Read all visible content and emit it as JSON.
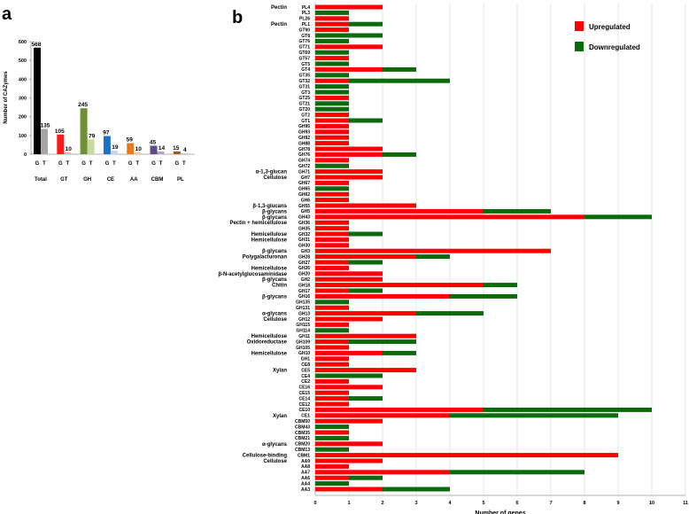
{
  "chart_data": [
    {
      "panel": "a",
      "type": "bar",
      "ylabel": "Number of CAZymes",
      "ylim": [
        0,
        600
      ],
      "yticks": [
        0,
        100,
        200,
        300,
        400,
        500,
        600
      ],
      "bar_labels": [
        "G",
        "T"
      ],
      "categories": [
        "Total",
        "GT",
        "GH",
        "CE",
        "AA",
        "CBM",
        "PL"
      ],
      "series": [
        {
          "name": "G",
          "values": [
            568,
            105,
            245,
            97,
            59,
            45,
            15
          ]
        },
        {
          "name": "T",
          "values": [
            135,
            10,
            79,
            19,
            10,
            14,
            4
          ]
        }
      ],
      "colors": {
        "G": [
          "#000000",
          "#ff1a1a",
          "#6f8f35",
          "#1f6fc5",
          "#e8791e",
          "#5f4b8b",
          "#9c5a24"
        ],
        "T": [
          "#a6a6a6",
          "#f4b3b3",
          "#c6dc9c",
          "#c5d8f1",
          "#f6c9a8",
          "#b3a5c8",
          "#d9b38c"
        ]
      }
    },
    {
      "panel": "b",
      "type": "bar",
      "orientation": "horizontal-stacked",
      "xlabel": "Number of genes",
      "xlim": [
        0,
        11
      ],
      "xticks": [
        0,
        1,
        2,
        3,
        4,
        5,
        6,
        7,
        8,
        9,
        10,
        11
      ],
      "grid": true,
      "legend": {
        "position": "top-right",
        "entries": [
          "Upregulated",
          "Downregulated"
        ]
      },
      "colors": {
        "Upregulated": "#ff0000",
        "Downregulated": "#0b6a0b"
      },
      "rows": [
        {
          "family": "PL4",
          "substrate": "Pectin",
          "up": 2,
          "down": 0
        },
        {
          "family": "PL3",
          "substrate": "",
          "up": 0,
          "down": 1
        },
        {
          "family": "PL26",
          "substrate": "",
          "up": 1,
          "down": 0
        },
        {
          "family": "PL1",
          "substrate": "Pectin",
          "up": 1,
          "down": 1
        },
        {
          "family": "GT90",
          "substrate": "",
          "up": 1,
          "down": 0
        },
        {
          "family": "GT8",
          "substrate": "",
          "up": 0,
          "down": 2
        },
        {
          "family": "GT76",
          "substrate": "",
          "up": 0,
          "down": 1
        },
        {
          "family": "GT71",
          "substrate": "",
          "up": 2,
          "down": 0
        },
        {
          "family": "GT69",
          "substrate": "",
          "up": 0,
          "down": 1
        },
        {
          "family": "GT57",
          "substrate": "",
          "up": 1,
          "down": 0
        },
        {
          "family": "GT5",
          "substrate": "",
          "up": 0,
          "down": 1
        },
        {
          "family": "GT4",
          "substrate": "",
          "up": 2,
          "down": 1
        },
        {
          "family": "GT35",
          "substrate": "",
          "up": 0,
          "down": 1
        },
        {
          "family": "GT32",
          "substrate": "",
          "up": 1,
          "down": 3
        },
        {
          "family": "GT31",
          "substrate": "",
          "up": 0,
          "down": 1
        },
        {
          "family": "GT3",
          "substrate": "",
          "up": 0,
          "down": 1
        },
        {
          "family": "GT25",
          "substrate": "",
          "up": 1,
          "down": 0
        },
        {
          "family": "GT21",
          "substrate": "",
          "up": 0,
          "down": 1
        },
        {
          "family": "GT20",
          "substrate": "",
          "up": 0,
          "down": 1
        },
        {
          "family": "GT2",
          "substrate": "",
          "up": 1,
          "down": 0
        },
        {
          "family": "GT1",
          "substrate": "",
          "up": 1,
          "down": 1
        },
        {
          "family": "GH95",
          "substrate": "",
          "up": 1,
          "down": 0
        },
        {
          "family": "GH93",
          "substrate": "",
          "up": 1,
          "down": 0
        },
        {
          "family": "GH92",
          "substrate": "",
          "up": 1,
          "down": 0
        },
        {
          "family": "GH88",
          "substrate": "",
          "up": 1,
          "down": 0
        },
        {
          "family": "GH78",
          "substrate": "",
          "up": 2,
          "down": 0
        },
        {
          "family": "GH76",
          "substrate": "",
          "up": 2,
          "down": 1
        },
        {
          "family": "GH74",
          "substrate": "",
          "up": 1,
          "down": 0
        },
        {
          "family": "GH72",
          "substrate": "",
          "up": 0,
          "down": 1
        },
        {
          "family": "GH71",
          "substrate": "α-1,3-glucan",
          "up": 2,
          "down": 0
        },
        {
          "family": "GH7",
          "substrate": "Cellulose",
          "up": 2,
          "down": 0
        },
        {
          "family": "GH67",
          "substrate": "",
          "up": 1,
          "down": 0
        },
        {
          "family": "GH65",
          "substrate": "",
          "up": 0,
          "down": 1
        },
        {
          "family": "GH62",
          "substrate": "",
          "up": 1,
          "down": 0
        },
        {
          "family": "GH6",
          "substrate": "",
          "up": 1,
          "down": 0
        },
        {
          "family": "GH55",
          "substrate": "β-1,3-glucans",
          "up": 3,
          "down": 0
        },
        {
          "family": "GH5",
          "substrate": "β-glycans",
          "up": 5,
          "down": 2
        },
        {
          "family": "GH43",
          "substrate": "β-glycans",
          "up": 8,
          "down": 2
        },
        {
          "family": "GH36",
          "substrate": "Pectin + hemicellulose",
          "up": 1,
          "down": 0
        },
        {
          "family": "GH35",
          "substrate": "",
          "up": 1,
          "down": 0
        },
        {
          "family": "GH32",
          "substrate": "Hemicellulose",
          "up": 1,
          "down": 1
        },
        {
          "family": "GH31",
          "substrate": "Hemicellulose",
          "up": 1,
          "down": 0
        },
        {
          "family": "GH30",
          "substrate": "",
          "up": 1,
          "down": 0
        },
        {
          "family": "GH3",
          "substrate": "β-glycans",
          "up": 7,
          "down": 0
        },
        {
          "family": "GH28",
          "substrate": "Polygalacturonan",
          "up": 3,
          "down": 1
        },
        {
          "family": "GH27",
          "substrate": "",
          "up": 1,
          "down": 1
        },
        {
          "family": "GH26",
          "substrate": "Hemicellulose",
          "up": 1,
          "down": 0
        },
        {
          "family": "GH20",
          "substrate": "β-N-acetylglucosaminidase",
          "up": 2,
          "down": 0
        },
        {
          "family": "GH2",
          "substrate": "β-glycans",
          "up": 2,
          "down": 0
        },
        {
          "family": "GH18",
          "substrate": "Chitin",
          "up": 5,
          "down": 1
        },
        {
          "family": "GH17",
          "substrate": "",
          "up": 1,
          "down": 1
        },
        {
          "family": "GH16",
          "substrate": "β-glycans",
          "up": 4,
          "down": 2
        },
        {
          "family": "GH135",
          "substrate": "",
          "up": 0,
          "down": 1
        },
        {
          "family": "GH131",
          "substrate": "",
          "up": 1,
          "down": 0
        },
        {
          "family": "GH13",
          "substrate": "α-glycans",
          "up": 3,
          "down": 2
        },
        {
          "family": "GH12",
          "substrate": "Cellulose",
          "up": 2,
          "down": 0
        },
        {
          "family": "GH115",
          "substrate": "",
          "up": 1,
          "down": 0
        },
        {
          "family": "GH114",
          "substrate": "",
          "up": 0,
          "down": 1
        },
        {
          "family": "GH11",
          "substrate": "Hemicellulose",
          "up": 3,
          "down": 0
        },
        {
          "family": "GH109",
          "substrate": "Oxidoreductase",
          "up": 1,
          "down": 2
        },
        {
          "family": "GH105",
          "substrate": "",
          "up": 1,
          "down": 0
        },
        {
          "family": "GH10",
          "substrate": "Hemicellulose",
          "up": 2,
          "down": 1
        },
        {
          "family": "GH1",
          "substrate": "",
          "up": 1,
          "down": 0
        },
        {
          "family": "CE8",
          "substrate": "",
          "up": 1,
          "down": 0
        },
        {
          "family": "CE5",
          "substrate": "Xylan",
          "up": 3,
          "down": 0
        },
        {
          "family": "CE4",
          "substrate": "",
          "up": 0,
          "down": 2
        },
        {
          "family": "CE2",
          "substrate": "",
          "up": 1,
          "down": 0
        },
        {
          "family": "CE16",
          "substrate": "",
          "up": 2,
          "down": 0
        },
        {
          "family": "CE15",
          "substrate": "",
          "up": 1,
          "down": 0
        },
        {
          "family": "CE14",
          "substrate": "",
          "up": 1,
          "down": 1
        },
        {
          "family": "CE12",
          "substrate": "",
          "up": 1,
          "down": 0
        },
        {
          "family": "CE10",
          "substrate": "",
          "up": 5,
          "down": 5
        },
        {
          "family": "CE1",
          "substrate": "Xylan",
          "up": 4,
          "down": 5
        },
        {
          "family": "CBM50",
          "substrate": "",
          "up": 2,
          "down": 0
        },
        {
          "family": "CBM43",
          "substrate": "",
          "up": 0,
          "down": 1
        },
        {
          "family": "CBM35",
          "substrate": "",
          "up": 1,
          "down": 0
        },
        {
          "family": "CBM21",
          "substrate": "",
          "up": 0,
          "down": 1
        },
        {
          "family": "CBM20",
          "substrate": "α-glycans",
          "up": 2,
          "down": 0
        },
        {
          "family": "CBM13",
          "substrate": "",
          "up": 0,
          "down": 1
        },
        {
          "family": "CBM1",
          "substrate": "Cellulose-binding",
          "up": 9,
          "down": 0
        },
        {
          "family": "AA9",
          "substrate": "Cellulose",
          "up": 2,
          "down": 0
        },
        {
          "family": "AA8",
          "substrate": "",
          "up": 1,
          "down": 0
        },
        {
          "family": "AA7",
          "substrate": "",
          "up": 4,
          "down": 4
        },
        {
          "family": "AA6",
          "substrate": "",
          "up": 1,
          "down": 1
        },
        {
          "family": "AA4",
          "substrate": "",
          "up": 0,
          "down": 1
        },
        {
          "family": "AA3",
          "substrate": "",
          "up": 2,
          "down": 2
        }
      ]
    }
  ],
  "panel_labels": {
    "a": "a",
    "b": "b"
  }
}
